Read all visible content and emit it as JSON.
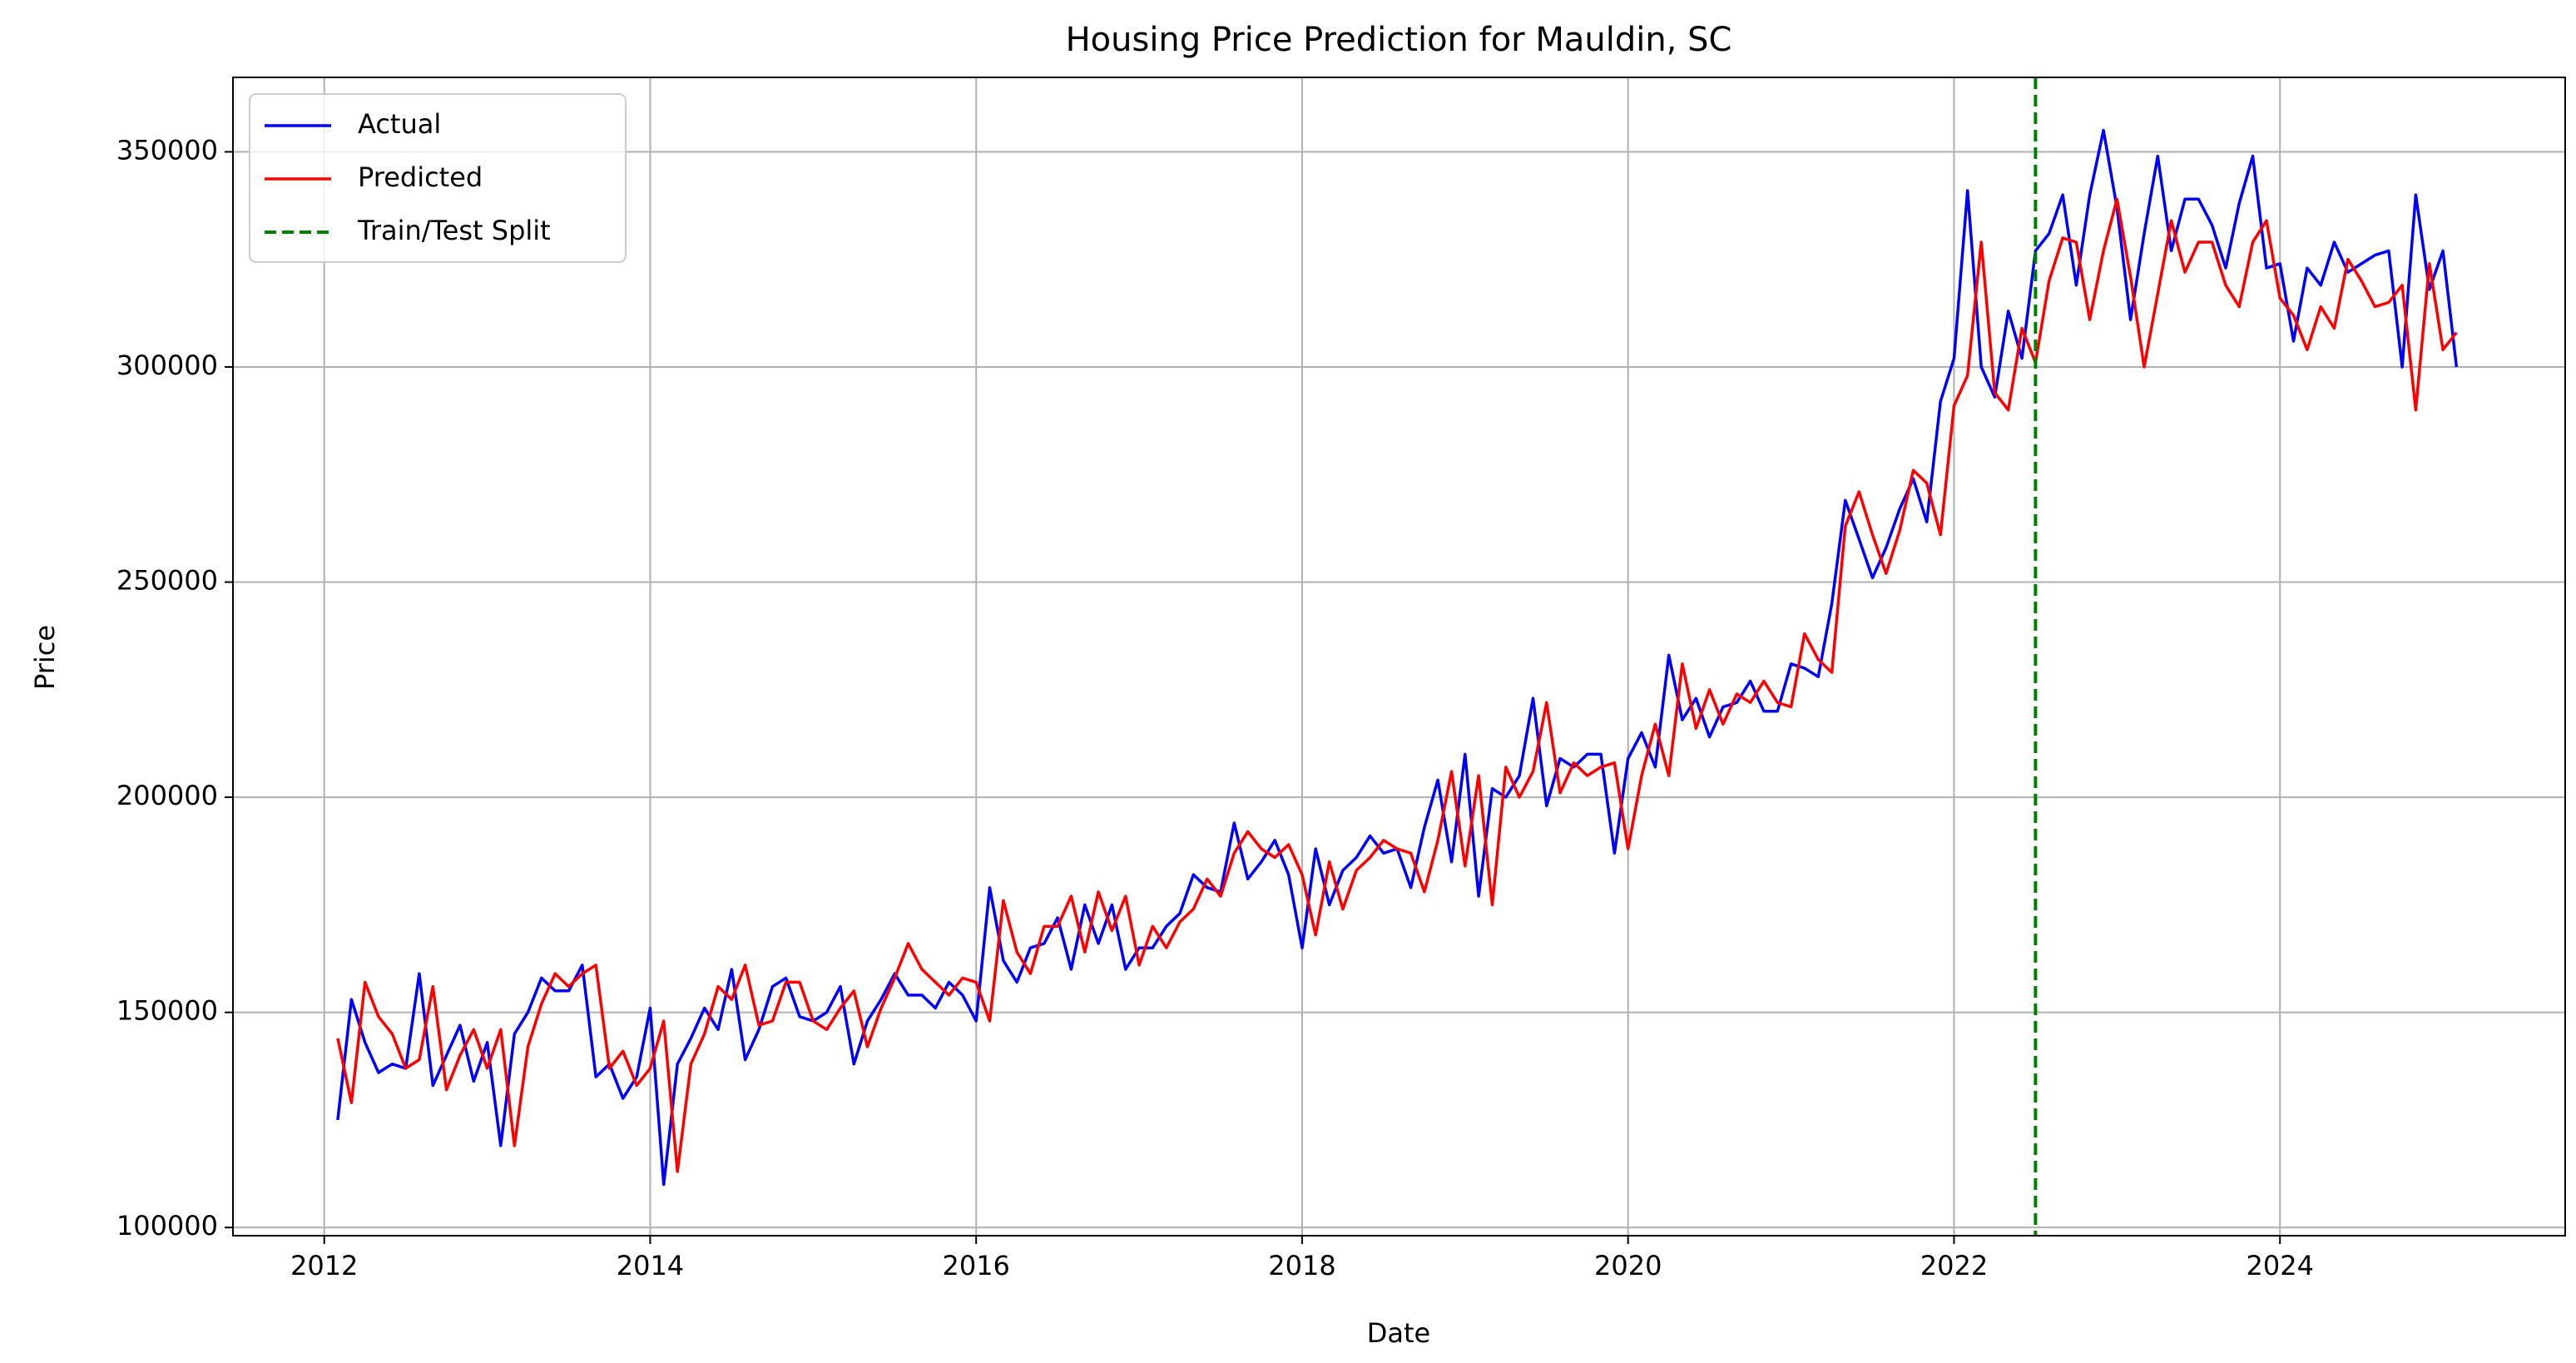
{
  "chart_data": {
    "type": "line",
    "title": "Housing Price Prediction for Mauldin, SC",
    "x_label": "Date",
    "y_label": "Price",
    "x": [
      2012.083,
      2012.167,
      2012.25,
      2012.333,
      2012.417,
      2012.5,
      2012.583,
      2012.667,
      2012.75,
      2012.833,
      2012.917,
      2013,
      2013.083,
      2013.167,
      2013.25,
      2013.333,
      2013.417,
      2013.5,
      2013.583,
      2013.667,
      2013.75,
      2013.833,
      2013.917,
      2014,
      2014.083,
      2014.167,
      2014.25,
      2014.333,
      2014.417,
      2014.5,
      2014.583,
      2014.667,
      2014.75,
      2014.833,
      2014.917,
      2015,
      2015.083,
      2015.167,
      2015.25,
      2015.333,
      2015.417,
      2015.5,
      2015.583,
      2015.667,
      2015.75,
      2015.833,
      2015.917,
      2016,
      2016.083,
      2016.167,
      2016.25,
      2016.333,
      2016.417,
      2016.5,
      2016.583,
      2016.667,
      2016.75,
      2016.833,
      2016.917,
      2017,
      2017.083,
      2017.167,
      2017.25,
      2017.333,
      2017.417,
      2017.5,
      2017.583,
      2017.667,
      2017.75,
      2017.833,
      2017.917,
      2018,
      2018.083,
      2018.167,
      2018.25,
      2018.333,
      2018.417,
      2018.5,
      2018.583,
      2018.667,
      2018.75,
      2018.833,
      2018.917,
      2019,
      2019.083,
      2019.167,
      2019.25,
      2019.333,
      2019.417,
      2019.5,
      2019.583,
      2019.667,
      2019.75,
      2019.833,
      2019.917,
      2020,
      2020.083,
      2020.167,
      2020.25,
      2020.333,
      2020.417,
      2020.5,
      2020.583,
      2020.667,
      2020.75,
      2020.833,
      2020.917,
      2021,
      2021.083,
      2021.167,
      2021.25,
      2021.333,
      2021.417,
      2021.5,
      2021.583,
      2021.667,
      2021.75,
      2021.833,
      2021.917,
      2022,
      2022.083,
      2022.167,
      2022.25,
      2022.333,
      2022.417,
      2022.5,
      2022.583,
      2022.667,
      2022.75,
      2022.833,
      2022.917,
      2023,
      2023.083,
      2023.167,
      2023.25,
      2023.333,
      2023.417,
      2023.5,
      2023.583,
      2023.667,
      2023.75,
      2023.833,
      2023.917,
      2024,
      2024.083,
      2024.167,
      2024.25,
      2024.333,
      2024.417,
      2024.5,
      2024.583,
      2024.667,
      2024.75,
      2024.833,
      2024.917,
      2025,
      2025.083
    ],
    "series": [
      {
        "name": "Actual",
        "color": "#0000ff",
        "values": [
          125000,
          153000,
          143000,
          136000,
          138000,
          137000,
          159000,
          133000,
          140000,
          147000,
          134000,
          143000,
          119000,
          145000,
          150000,
          158000,
          155000,
          155000,
          161000,
          135000,
          138000,
          130000,
          135000,
          151000,
          110000,
          138000,
          144000,
          151000,
          146000,
          160000,
          139000,
          146000,
          156000,
          158000,
          149000,
          148000,
          150000,
          156000,
          138000,
          148000,
          153000,
          159000,
          154000,
          154000,
          151000,
          157000,
          154000,
          148000,
          179000,
          162000,
          157000,
          165000,
          166000,
          172000,
          160000,
          175000,
          166000,
          175000,
          160000,
          165000,
          165000,
          170000,
          173000,
          182000,
          179000,
          178000,
          194000,
          181000,
          185000,
          190000,
          182000,
          165000,
          188000,
          175000,
          183000,
          186000,
          191000,
          187000,
          188000,
          179000,
          193000,
          204000,
          185000,
          210000,
          177000,
          202000,
          200000,
          205000,
          223000,
          198000,
          209000,
          207000,
          210000,
          210000,
          187000,
          209000,
          215000,
          207000,
          233000,
          218000,
          223000,
          214000,
          221000,
          222000,
          227000,
          220000,
          220000,
          231000,
          230000,
          228000,
          245000,
          269000,
          260000,
          251000,
          258000,
          267000,
          274000,
          264000,
          292000,
          302000,
          341000,
          300000,
          293000,
          313000,
          302000,
          327000,
          331000,
          340000,
          319000,
          340000,
          355000,
          337000,
          311000,
          331000,
          349000,
          327000,
          339000,
          339000,
          333000,
          323000,
          338000,
          349000,
          323000,
          324000,
          306000,
          323000,
          319000,
          329000,
          322000,
          324000,
          326000,
          327000,
          300000,
          340000,
          318000,
          327000,
          300000
        ]
      },
      {
        "name": "Predicted",
        "color": "#ff0000",
        "values": [
          144000,
          129000,
          157000,
          149000,
          145000,
          137000,
          139000,
          156000,
          132000,
          140000,
          146000,
          137000,
          146000,
          119000,
          142000,
          152000,
          159000,
          156000,
          159000,
          161000,
          137000,
          141000,
          133000,
          137000,
          148000,
          113000,
          138000,
          145000,
          156000,
          153000,
          161000,
          147000,
          148000,
          157000,
          157000,
          148000,
          146000,
          151000,
          155000,
          142000,
          151000,
          158000,
          166000,
          160000,
          157000,
          154000,
          158000,
          157000,
          148000,
          176000,
          164000,
          159000,
          170000,
          170000,
          177000,
          164000,
          178000,
          169000,
          177000,
          161000,
          170000,
          165000,
          171000,
          174000,
          181000,
          177000,
          187000,
          192000,
          188000,
          186000,
          189000,
          182000,
          168000,
          185000,
          174000,
          183000,
          186000,
          190000,
          188000,
          187000,
          178000,
          190000,
          206000,
          184000,
          205000,
          175000,
          207000,
          200000,
          206000,
          222000,
          201000,
          208000,
          205000,
          207000,
          208000,
          188000,
          205000,
          217000,
          205000,
          231000,
          216000,
          225000,
          217000,
          224000,
          222000,
          227000,
          222000,
          221000,
          238000,
          232000,
          229000,
          263000,
          271000,
          261000,
          252000,
          262000,
          276000,
          273000,
          261000,
          291000,
          298000,
          329000,
          294000,
          290000,
          309000,
          301000,
          320000,
          330000,
          329000,
          311000,
          327000,
          339000,
          321000,
          300000,
          317000,
          334000,
          322000,
          329000,
          329000,
          319000,
          314000,
          329000,
          334000,
          316000,
          312000,
          304000,
          314000,
          309000,
          325000,
          320000,
          314000,
          315000,
          319000,
          290000,
          324000,
          304000,
          308000
        ]
      }
    ],
    "vlines": [
      {
        "name": "Train/Test Split",
        "color": "#008000",
        "x": 2022.5,
        "dashed": true
      }
    ],
    "xlim": [
      2011.44,
      2025.75
    ],
    "xticks": [
      2012,
      2014,
      2016,
      2018,
      2020,
      2022,
      2024
    ],
    "ylim": [
      98100,
      367300
    ],
    "yticks": [
      100000,
      150000,
      200000,
      250000,
      300000,
      350000
    ],
    "grid": true,
    "legend": "upper left"
  }
}
